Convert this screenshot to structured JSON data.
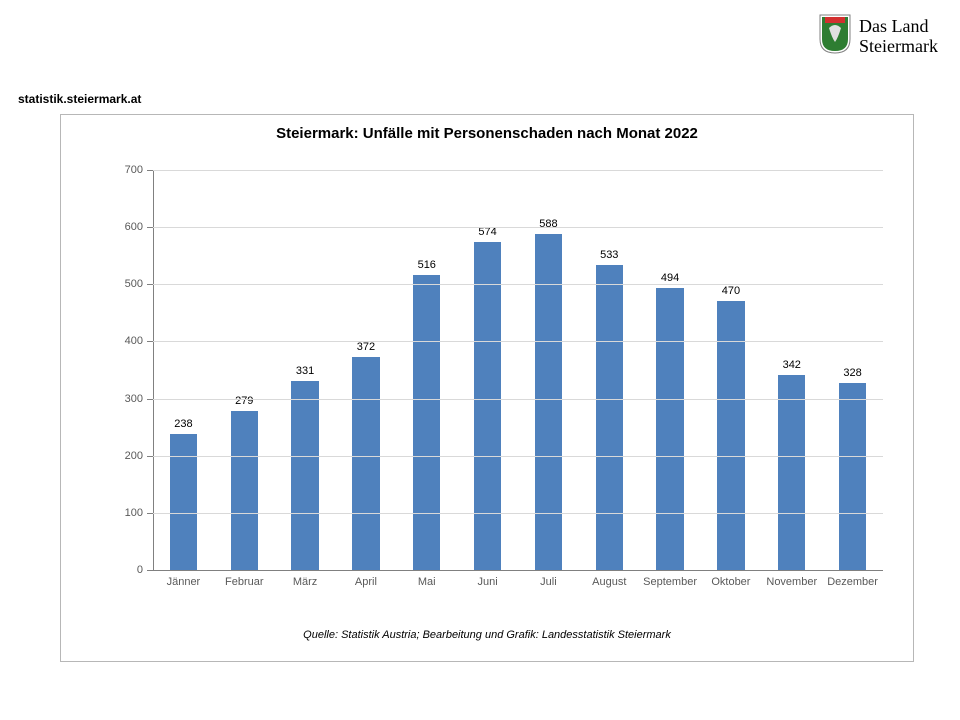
{
  "brand": {
    "line1": "Das Land",
    "line2": "Steiermark",
    "shield_bg": "#ffffff",
    "shield_border": "#808080",
    "shield_fill": "#2e7d32",
    "shield_accent": "#d32f2f"
  },
  "site_label": "statistik.steiermark.at",
  "chart": {
    "type": "bar",
    "title": "Steiermark: Unfälle mit Personenschaden nach Monat 2022",
    "categories": [
      "Jänner",
      "Februar",
      "März",
      "April",
      "Mai",
      "Juni",
      "Juli",
      "August",
      "September",
      "Oktober",
      "November",
      "Dezember"
    ],
    "values": [
      238,
      279,
      331,
      372,
      516,
      574,
      588,
      533,
      494,
      470,
      342,
      328
    ],
    "bar_color": "#4f81bd",
    "background_color": "#ffffff",
    "frame_border_color": "#b7b7b7",
    "grid_color": "#d9d9d9",
    "axis_color": "#808080",
    "tick_label_color": "#595959",
    "value_label_color": "#000000",
    "title_fontsize": 15,
    "tick_fontsize": 11,
    "value_fontsize": 11,
    "ylim": [
      0,
      700
    ],
    "ytick_step": 100,
    "bar_width_ratio": 0.45,
    "source": "Quelle: Statistik Austria; Bearbeitung und Grafik: Landesstatistik Steiermark"
  }
}
